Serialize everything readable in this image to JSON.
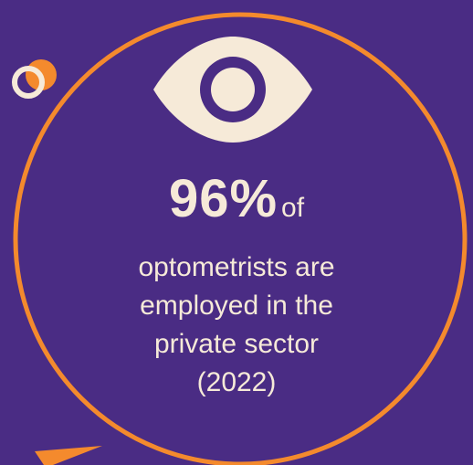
{
  "colors": {
    "background": "#4a2c84",
    "accent": "#f48a2d",
    "text": "#f6ead8"
  },
  "icon": "eye-icon",
  "stat": {
    "value": "96%",
    "suffix": "of",
    "lines": [
      "optometrists are",
      "employed in the",
      "private sector",
      "(2022)"
    ]
  }
}
